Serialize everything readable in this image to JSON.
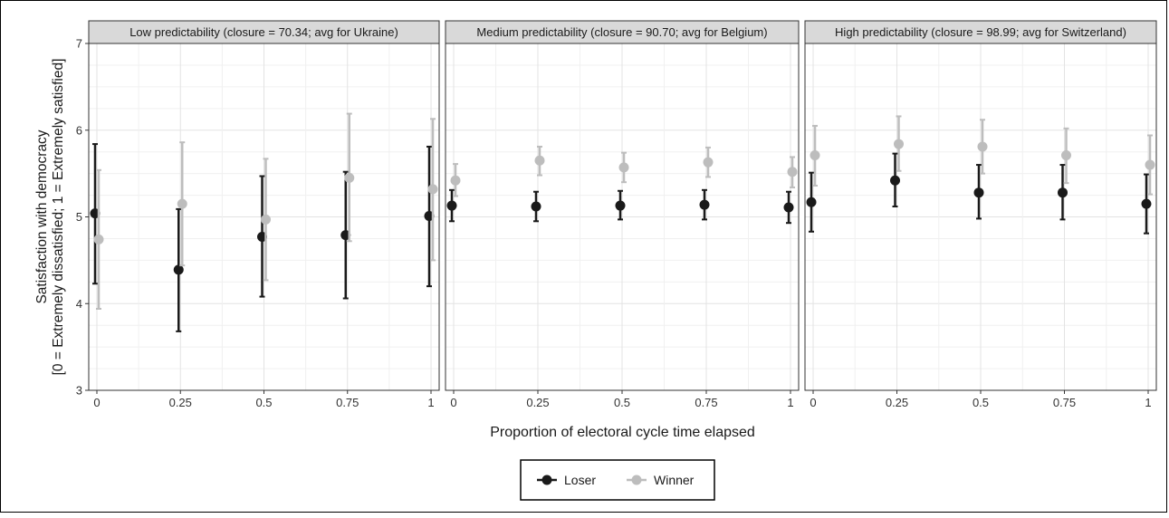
{
  "chart_data": {
    "type": "scatter",
    "xlabel": "Proportion of electoral cycle time elapsed",
    "ylabel_lines": [
      "Satisfaction with democracy",
      "[0 = Extremely dissatisfied; 1 = Extremely satisfied]"
    ],
    "ylim": [
      3,
      7
    ],
    "y_ticks": [
      "3",
      "4",
      "5",
      "6",
      "7"
    ],
    "xlim": [
      0,
      1
    ],
    "x_ticks": [
      "0",
      "0.25",
      "0.5",
      "0.75",
      "1"
    ],
    "x_tick_values": [
      0,
      0.25,
      0.5,
      0.75,
      1
    ],
    "grid": true,
    "legend": {
      "position": "bottom",
      "entries": [
        "Loser",
        "Winner"
      ]
    },
    "colors": {
      "Loser": "#1a1a1a",
      "Winner": "#bdbdbd",
      "strip": "#d9d9d9"
    },
    "panels": [
      {
        "title": "Low predictability (closure = 70.34; avg for Ukraine)",
        "series": [
          {
            "name": "Loser",
            "x": [
              0,
              0.25,
              0.5,
              0.75,
              1
            ],
            "y": [
              5.04,
              4.39,
              4.77,
              4.79,
              5.01
            ],
            "lower": [
              4.23,
              3.68,
              4.08,
              4.06,
              4.2
            ],
            "upper": [
              5.84,
              5.09,
              5.47,
              5.52,
              5.81
            ]
          },
          {
            "name": "Winner",
            "x": [
              0,
              0.25,
              0.5,
              0.75,
              1
            ],
            "y": [
              4.74,
              5.15,
              4.97,
              5.45,
              5.32
            ],
            "lower": [
              3.94,
              4.44,
              4.27,
              4.72,
              4.5
            ],
            "upper": [
              5.54,
              5.86,
              5.67,
              6.19,
              6.13
            ]
          }
        ]
      },
      {
        "title": "Medium predictability (closure = 90.70; avg for Belgium)",
        "series": [
          {
            "name": "Loser",
            "x": [
              0,
              0.25,
              0.5,
              0.75,
              1
            ],
            "y": [
              5.13,
              5.12,
              5.13,
              5.14,
              5.11
            ],
            "lower": [
              4.95,
              4.95,
              4.97,
              4.97,
              4.93
            ],
            "upper": [
              5.31,
              5.29,
              5.3,
              5.31,
              5.29
            ]
          },
          {
            "name": "Winner",
            "x": [
              0,
              0.25,
              0.5,
              0.75,
              1
            ],
            "y": [
              5.42,
              5.65,
              5.57,
              5.63,
              5.52
            ],
            "lower": [
              5.24,
              5.48,
              5.4,
              5.46,
              5.34
            ],
            "upper": [
              5.61,
              5.81,
              5.74,
              5.8,
              5.69
            ]
          }
        ]
      },
      {
        "title": "High predictability (closure = 98.99; avg for Switzerland)",
        "series": [
          {
            "name": "Loser",
            "x": [
              0,
              0.25,
              0.5,
              0.75,
              1
            ],
            "y": [
              5.17,
              5.42,
              5.28,
              5.28,
              5.15
            ],
            "lower": [
              4.83,
              5.12,
              4.98,
              4.97,
              4.81
            ],
            "upper": [
              5.51,
              5.73,
              5.6,
              5.6,
              5.49
            ]
          },
          {
            "name": "Winner",
            "x": [
              0,
              0.25,
              0.5,
              0.75,
              1
            ],
            "y": [
              5.71,
              5.84,
              5.81,
              5.71,
              5.6
            ],
            "lower": [
              5.36,
              5.53,
              5.5,
              5.39,
              5.26
            ],
            "upper": [
              6.05,
              6.16,
              6.12,
              6.02,
              5.94
            ]
          }
        ]
      }
    ]
  }
}
